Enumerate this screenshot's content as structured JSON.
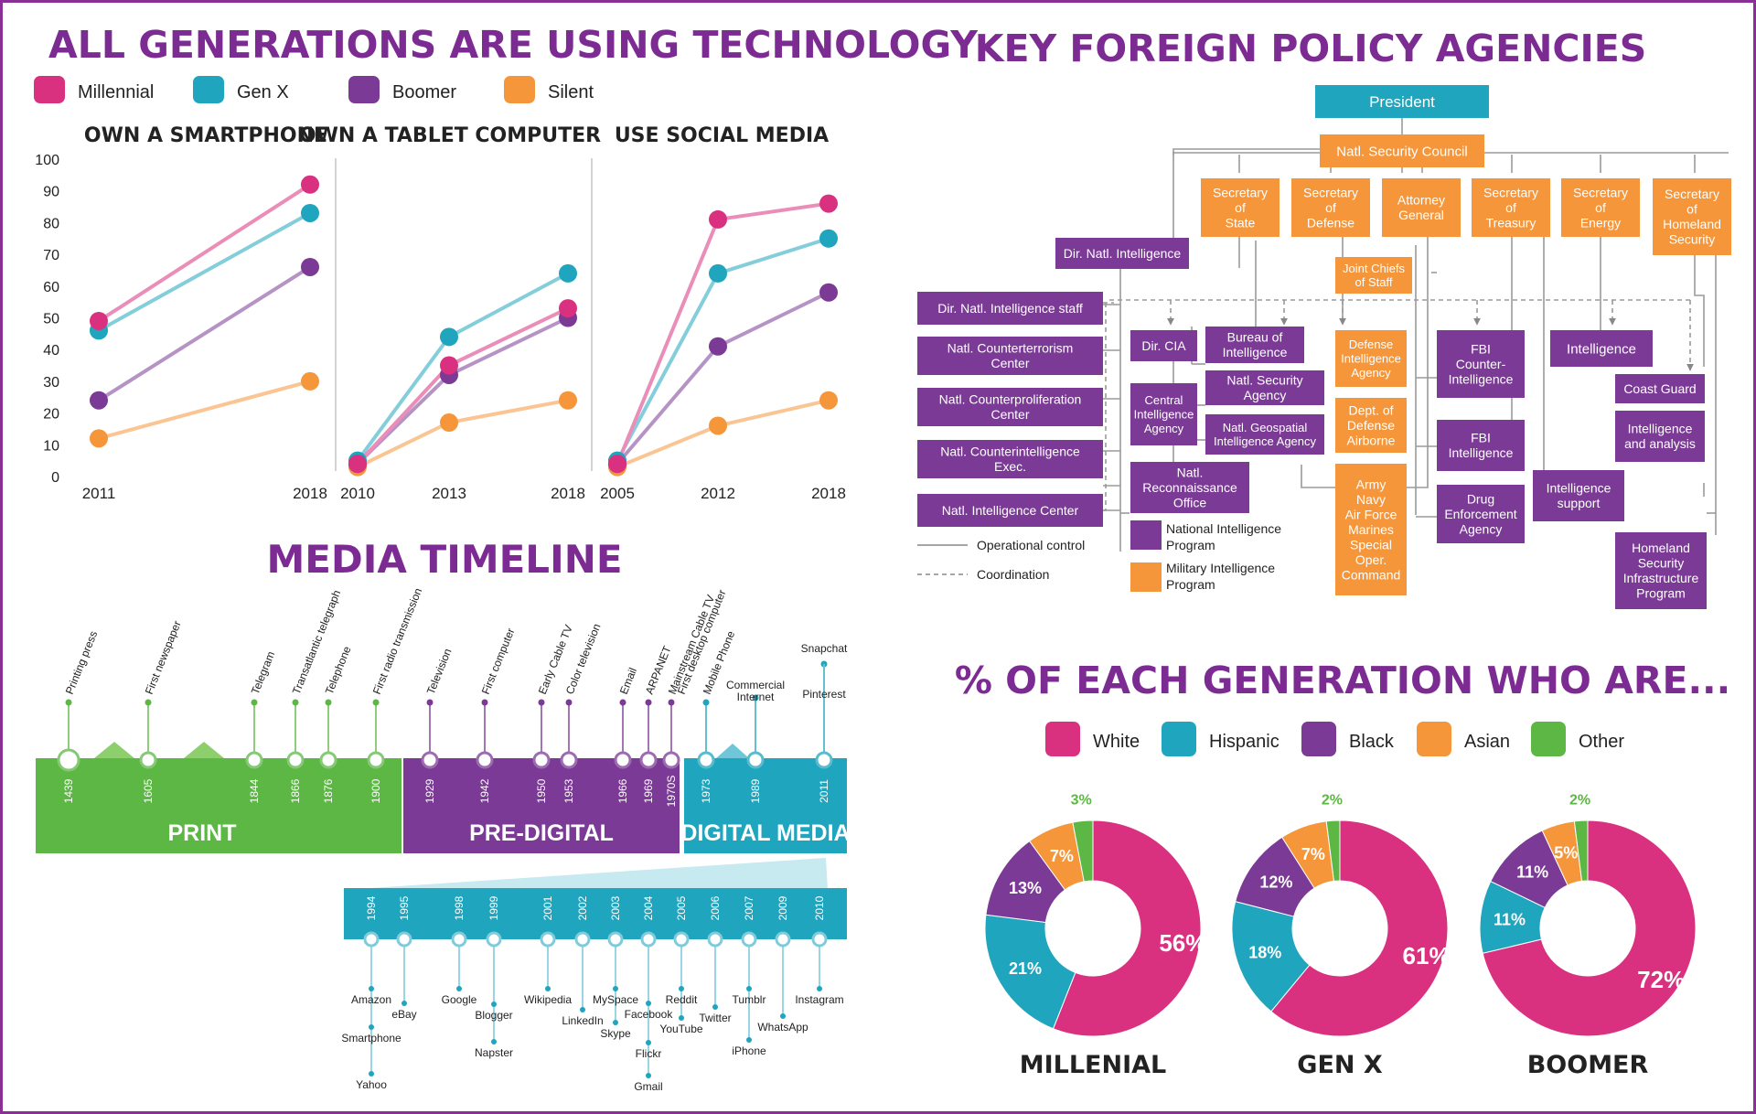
{
  "tech": {
    "title": "ALL GENERATIONS ARE USING TECHNOLOGY",
    "legend": [
      {
        "label": "Millennial",
        "color": "#d9317f"
      },
      {
        "label": "Gen X",
        "color": "#1fa5bd"
      },
      {
        "label": "Boomer",
        "color": "#7b3a95"
      },
      {
        "label": "Silent",
        "color": "#f5963a"
      }
    ],
    "y_ticks": [
      "100",
      "90",
      "80",
      "70",
      "60",
      "50",
      "40",
      "30",
      "20",
      "10",
      "0"
    ]
  },
  "policy": {
    "title": "KEY FOREIGN POLICY AGENCIES",
    "president": "President",
    "nsc": "Natl. Security Council",
    "secretaries": [
      [
        "Secretary",
        "of",
        "State"
      ],
      [
        "Secretary",
        "of",
        "Defense"
      ],
      [
        "Attorney",
        "General"
      ],
      [
        "Secretary",
        "of",
        "Treasury"
      ],
      [
        "Secretary",
        "of",
        "Energy"
      ],
      [
        "Secretary",
        "of",
        "Homeland",
        "Security"
      ]
    ],
    "dni": "Dir. Natl. Intelligence",
    "dni_left": [
      [
        "Dir. Natl. Intelligence staff"
      ],
      [
        "Natl. Counterterrorism",
        "Center"
      ],
      [
        "Natl. Counterproliferation",
        "Center"
      ],
      [
        "Natl. Counterintelligence",
        "Exec."
      ],
      [
        "Natl. Intelligence Center"
      ]
    ],
    "dir_cia": "Dir. CIA",
    "cia": [
      "Central",
      "Intelligence",
      "Agency"
    ],
    "nro": [
      "Natl.",
      "Reconnaissance",
      "Office"
    ],
    "state_bureau": [
      "Bureau of",
      "Intelligence"
    ],
    "nsa": [
      "Natl. Security",
      "Agency"
    ],
    "nga": [
      "Natl. Geospatial",
      "Intelligence Agency"
    ],
    "jcs": [
      "Joint Chiefs",
      "of Staff"
    ],
    "dia": [
      "Defense",
      "Intelligence",
      "Agency"
    ],
    "airborne": [
      "Dept. of",
      "Defense",
      "Airborne"
    ],
    "services": [
      "Army",
      "Navy",
      "Air Force",
      "Marines",
      "Special",
      "Oper.",
      "Command"
    ],
    "fbi_ci": [
      "FBI",
      "Counter-",
      "Intelligence"
    ],
    "fbi_intel": [
      "FBI",
      "Intelligence"
    ],
    "dea": [
      "Drug",
      "Enforcement",
      "Agency"
    ],
    "energy_intel": "Intelligence",
    "intel_support": [
      "Intelligence",
      "support"
    ],
    "coast_guard": "Coast Guard",
    "intel_analysis": [
      "Intelligence",
      "and analysis"
    ],
    "hsip": [
      "Homeland",
      "Security",
      "Infrastructure",
      "Program"
    ],
    "legend_operational": "Operational control",
    "legend_coordination": "Coordination",
    "legend_nip": [
      "National Intelligence",
      "Program"
    ],
    "legend_mip": [
      "Military Intelligence",
      "Program"
    ],
    "colors": {
      "teal": "#1fa5bd",
      "orange": "#f5963a",
      "purple": "#7b3a95"
    }
  },
  "media": {
    "title": "MEDIA TIMELINE",
    "eras": [
      {
        "label": "PRINT",
        "color": "#5db745"
      },
      {
        "label": "PRE-DIGITAL",
        "color": "#7b3a95"
      },
      {
        "label": "DIGITAL MEDIA",
        "color": "#1fa5bd"
      }
    ],
    "events": [
      {
        "year": "1439",
        "label": "Printing press",
        "era": 0
      },
      {
        "year": "1605",
        "label": "First newspaper",
        "era": 0
      },
      {
        "year": "1844",
        "label": "Telegram",
        "era": 0
      },
      {
        "year": "1866",
        "label": "Transatlantic telegraph",
        "era": 0
      },
      {
        "year": "1876",
        "label": "Telephone",
        "era": 0
      },
      {
        "year": "1900",
        "label": "First radio transmission",
        "era": 0
      },
      {
        "year": "1929",
        "label": "Television",
        "era": 1
      },
      {
        "year": "1942",
        "label": "First computer",
        "era": 1
      },
      {
        "year": "1950",
        "label": "Early Cable TV",
        "era": 1
      },
      {
        "year": "1953",
        "label": "Color television",
        "era": 1
      },
      {
        "year": "1966",
        "label": "Email",
        "era": 1
      },
      {
        "year": "1969",
        "label": "ARPANET",
        "era": 1
      },
      {
        "year": "1970S",
        "label": "Mainstream Cable TV",
        "label2": "First desktop computer",
        "era": 1
      },
      {
        "year": "1973",
        "label": "Mobile Phone",
        "era": 2
      },
      {
        "year": "1989",
        "label": "Commercial",
        "label2": "Internet",
        "era": 2
      },
      {
        "year": "2011",
        "label": "Pinterest",
        "label2": "Snapchat",
        "era": 2
      }
    ],
    "sub_years": [
      {
        "year": "1994",
        "items": [
          "Amazon",
          "Smartphone",
          "Yahoo"
        ]
      },
      {
        "year": "1995",
        "items": [
          "eBay"
        ]
      },
      {
        "year": "1998",
        "items": [
          "Google"
        ]
      },
      {
        "year": "1999",
        "items": [
          "Blogger",
          "Napster"
        ]
      },
      {
        "year": "2001",
        "items": [
          "Wikipedia"
        ]
      },
      {
        "year": "2002",
        "items": [
          "LinkedIn"
        ]
      },
      {
        "year": "2003",
        "items": [
          "MySpace",
          "Skype"
        ]
      },
      {
        "year": "2004",
        "items": [
          "Facebook",
          "Flickr",
          "Gmail"
        ]
      },
      {
        "year": "2005",
        "items": [
          "Reddit",
          "YouTube"
        ]
      },
      {
        "year": "2006",
        "items": [
          "Twitter"
        ]
      },
      {
        "year": "2007",
        "items": [
          "Tumblr",
          "iPhone"
        ]
      },
      {
        "year": "2009",
        "items": [
          "WhatsApp"
        ]
      },
      {
        "year": "2010",
        "items": [
          "Instagram"
        ]
      }
    ]
  },
  "gen": {
    "title": "% OF EACH GENERATION WHO ARE...",
    "legend": [
      {
        "label": "White",
        "color": "#d9317f"
      },
      {
        "label": "Hispanic",
        "color": "#1fa5bd"
      },
      {
        "label": "Black",
        "color": "#7b3a95"
      },
      {
        "label": "Asian",
        "color": "#f5963a"
      },
      {
        "label": "Other",
        "color": "#5db745"
      }
    ]
  },
  "chart_data": [
    {
      "type": "line",
      "title": "OWN A SMARTPHONE",
      "x": [
        "2011",
        "2018"
      ],
      "ylim": [
        0,
        100
      ],
      "series": [
        {
          "name": "Millennial",
          "values": [
            49,
            92
          ]
        },
        {
          "name": "Gen X",
          "values": [
            46,
            83
          ]
        },
        {
          "name": "Boomer",
          "values": [
            24,
            66
          ]
        },
        {
          "name": "Silent",
          "values": [
            12,
            30
          ]
        }
      ]
    },
    {
      "type": "line",
      "title": "OWN A TABLET COMPUTER",
      "x": [
        "2010",
        "2013",
        "2018"
      ],
      "ylim": [
        0,
        100
      ],
      "series": [
        {
          "name": "Millennial",
          "values": [
            4,
            35,
            53
          ]
        },
        {
          "name": "Gen X",
          "values": [
            5,
            44,
            64
          ]
        },
        {
          "name": "Boomer",
          "values": [
            4,
            32,
            50
          ]
        },
        {
          "name": "Silent",
          "values": [
            3,
            17,
            24
          ]
        }
      ]
    },
    {
      "type": "line",
      "title": "USE SOCIAL MEDIA",
      "x": [
        "2005",
        "2012",
        "2018"
      ],
      "ylim": [
        0,
        100
      ],
      "series": [
        {
          "name": "Millennial",
          "values": [
            4,
            81,
            86
          ]
        },
        {
          "name": "Gen X",
          "values": [
            5,
            64,
            75
          ]
        },
        {
          "name": "Boomer",
          "values": [
            4,
            41,
            58
          ]
        },
        {
          "name": "Silent",
          "values": [
            3,
            16,
            24
          ]
        }
      ]
    },
    {
      "type": "pie",
      "title": "MILLENIAL",
      "categories": [
        "White",
        "Hispanic",
        "Black",
        "Asian",
        "Other"
      ],
      "values": [
        56,
        21,
        13,
        7,
        3
      ]
    },
    {
      "type": "pie",
      "title": "GEN X",
      "categories": [
        "White",
        "Hispanic",
        "Black",
        "Asian",
        "Other"
      ],
      "values": [
        61,
        18,
        12,
        7,
        2
      ]
    },
    {
      "type": "pie",
      "title": "BOOMER",
      "categories": [
        "White",
        "Hispanic",
        "Black",
        "Asian",
        "Other"
      ],
      "values": [
        72,
        11,
        11,
        5,
        2
      ]
    }
  ]
}
